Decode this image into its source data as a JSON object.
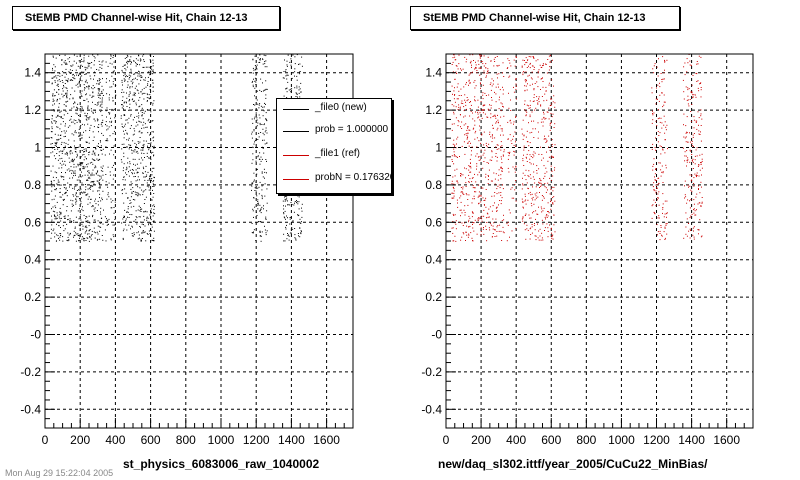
{
  "footer_text": "Mon Aug 29 15:22:04 2005",
  "chart_data": [
    {
      "type": "scatter",
      "title": "StEMB PMD Channel-wise Hit, Chain 12-13",
      "xlabel": "st_physics_6083006_raw_1040002",
      "xlim": [
        0,
        1750
      ],
      "ylim": [
        -0.5,
        1.5
      ],
      "x_ticks": [
        0,
        200,
        400,
        600,
        800,
        1000,
        1200,
        1400,
        1600
      ],
      "y_ticks": [
        -0.4,
        -0.2,
        0.0,
        0.2,
        0.4,
        0.6,
        0.8,
        1.0,
        1.2,
        1.4
      ],
      "y_tick_labels": [
        "-0.4",
        "-0.2",
        "-0",
        "0.2",
        "0.4",
        "0.6",
        "0.8",
        "1",
        "1.2",
        "1.4"
      ],
      "grid": true,
      "legend": {
        "placement": "top-right",
        "entries": [
          {
            "label": "_file0 (new)",
            "color": "#000000"
          },
          {
            "label": "prob = 1.000000",
            "color": "#000000"
          },
          {
            "label": "_file1 (ref)",
            "color": "#cc0000"
          },
          {
            "label": "probN = 0.176320",
            "color": "#cc0000"
          }
        ]
      },
      "point_color": "#000000",
      "point_bands": [
        {
          "x_range": [
            30,
            330
          ],
          "y_range": [
            0.5,
            1.5
          ],
          "density": 0.9
        },
        {
          "x_range": [
            340,
            400
          ],
          "y_range": [
            0.5,
            1.5
          ],
          "density": 0.5
        },
        {
          "x_range": [
            430,
            620
          ],
          "y_range": [
            0.5,
            1.5
          ],
          "density": 0.85
        },
        {
          "x_range": [
            1170,
            1260
          ],
          "y_range": [
            0.5,
            1.5
          ],
          "density": 0.7
        },
        {
          "x_range": [
            1350,
            1460
          ],
          "y_range": [
            0.5,
            1.5
          ],
          "density": 0.75
        }
      ]
    },
    {
      "type": "scatter",
      "title": "StEMB PMD Channel-wise Hit, Chain 12-13",
      "xlabel": "new/daq_sl302.ittf/year_2005/CuCu22_MinBias/",
      "xlim": [
        0,
        1750
      ],
      "ylim": [
        -0.5,
        1.5
      ],
      "x_ticks": [
        0,
        200,
        400,
        600,
        800,
        1000,
        1200,
        1400,
        1600
      ],
      "y_ticks": [
        -0.4,
        -0.2,
        0.0,
        0.2,
        0.4,
        0.6,
        0.8,
        1.0,
        1.2,
        1.4
      ],
      "y_tick_labels": [
        "-0.4",
        "-0.2",
        "-0",
        "0.2",
        "0.4",
        "0.6",
        "0.8",
        "1",
        "1.2",
        "1.4"
      ],
      "grid": true,
      "point_color": "#cc0000",
      "point_bands": [
        {
          "x_range": [
            30,
            330
          ],
          "y_range": [
            0.5,
            1.5
          ],
          "density": 0.6
        },
        {
          "x_range": [
            340,
            400
          ],
          "y_range": [
            0.5,
            1.5
          ],
          "density": 0.35
        },
        {
          "x_range": [
            430,
            620
          ],
          "y_range": [
            0.5,
            1.5
          ],
          "density": 0.6
        },
        {
          "x_range": [
            1170,
            1260
          ],
          "y_range": [
            0.5,
            1.5
          ],
          "density": 0.5
        },
        {
          "x_range": [
            1350,
            1460
          ],
          "y_range": [
            0.5,
            1.5
          ],
          "density": 0.55
        }
      ]
    }
  ]
}
